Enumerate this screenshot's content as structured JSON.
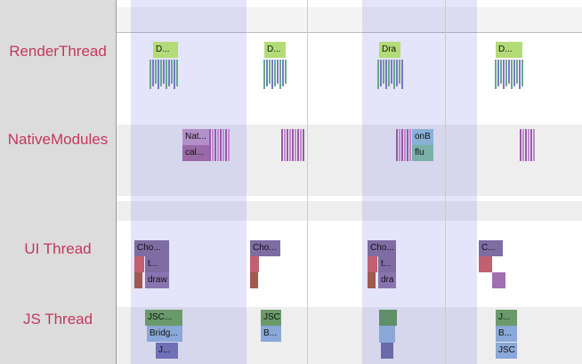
{
  "threads": [
    "RenderThread",
    "NativeModules",
    "UI Thread",
    "JS Thread"
  ],
  "slices": {
    "render": [
      "D...",
      "D...",
      "Dra",
      "D..."
    ],
    "native": [
      "Nat...",
      "cal...",
      "onB",
      "flu"
    ],
    "ui": [
      "Cho...",
      "t...",
      "draw",
      "Cho...",
      "Cho...",
      "t...",
      "dra",
      "C..."
    ],
    "js": [
      "JSC...",
      "Bridg...",
      "J...",
      "JSC",
      "B...",
      "J...",
      "B...",
      "JSC"
    ]
  }
}
